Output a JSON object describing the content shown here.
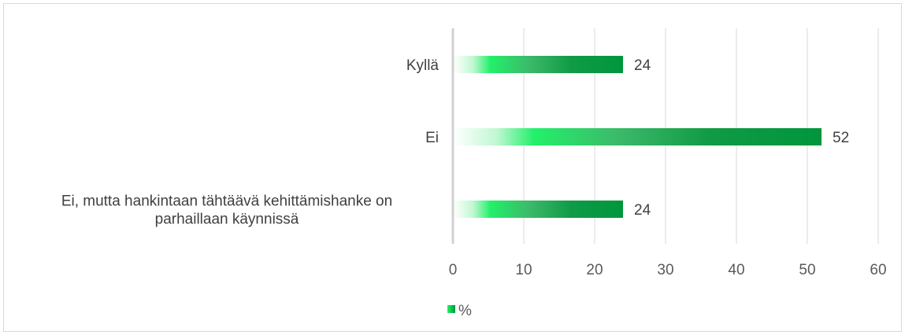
{
  "chart_data": {
    "type": "bar",
    "orientation": "horizontal",
    "title": "",
    "xlabel": "",
    "ylabel": "",
    "categories": [
      [
        "Kyllä"
      ],
      [
        "Ei"
      ],
      [
        "Ei, mutta hankintaan tähtäävä kehittämishanke on",
        "parhaillaan käynnissä"
      ]
    ],
    "series": [
      {
        "name": "%",
        "values": [
          24,
          52,
          24
        ],
        "color": "#00963c"
      }
    ],
    "xlim": [
      0,
      60
    ],
    "xticks": [
      0,
      10,
      20,
      30,
      40,
      50,
      60
    ],
    "grid": true,
    "legend": "bottom",
    "colors": {
      "bar_dark": "#00963c",
      "bar_bright": "#23f06a",
      "grid": "#d9d9d9",
      "axis": "#d0d0d0"
    }
  }
}
